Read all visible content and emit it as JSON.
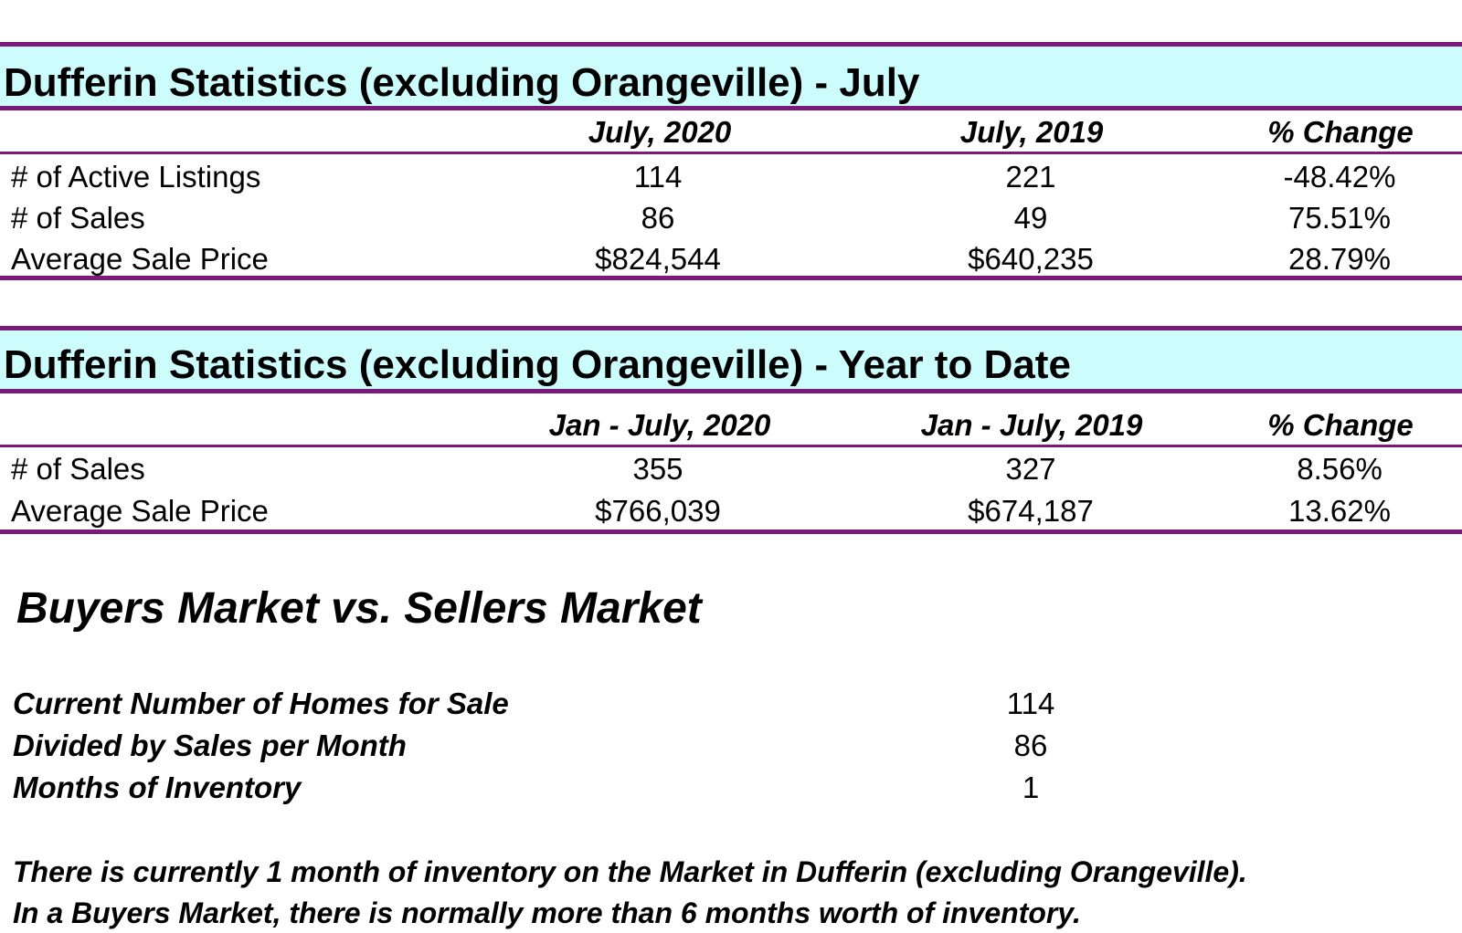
{
  "july": {
    "title": "Dufferin Statistics (excluding Orangeville) - July",
    "columns": [
      "July, 2020",
      "July, 2019",
      "% Change"
    ],
    "rows": [
      {
        "label": "# of Active Listings",
        "v2020": "114",
        "v2019": "221",
        "change": "-48.42%"
      },
      {
        "label": "# of Sales",
        "v2020": "86",
        "v2019": "49",
        "change": "75.51%"
      },
      {
        "label": "Average Sale Price",
        "v2020": "$824,544",
        "v2019": "$640,235",
        "change": "28.79%"
      }
    ]
  },
  "ytd": {
    "title": "Dufferin Statistics (excluding Orangeville) - Year to Date",
    "columns": [
      "Jan - July, 2020",
      "Jan - July, 2019",
      "% Change"
    ],
    "rows": [
      {
        "label": "# of Sales",
        "v2020": "355",
        "v2019": "327",
        "change": "8.56%"
      },
      {
        "label": "Average Sale Price",
        "v2020": "$766,039",
        "v2019": "$674,187",
        "change": "13.62%"
      }
    ]
  },
  "market": {
    "heading": "Buyers Market vs. Sellers Market",
    "items": [
      {
        "label": "Current Number of Homes for Sale",
        "value": "114"
      },
      {
        "label": "Divided by Sales per Month",
        "value": "86"
      },
      {
        "label": "Months of Inventory",
        "value": "1"
      }
    ],
    "note_line1": "There is currently 1 month of inventory on the Market in Dufferin (excluding Orangeville).",
    "note_line2": "In a Buyers Market, there is normally more than 6 months worth of inventory."
  },
  "colors": {
    "band_fill": "#ccfcfc",
    "rule": "#7a1a7a"
  }
}
